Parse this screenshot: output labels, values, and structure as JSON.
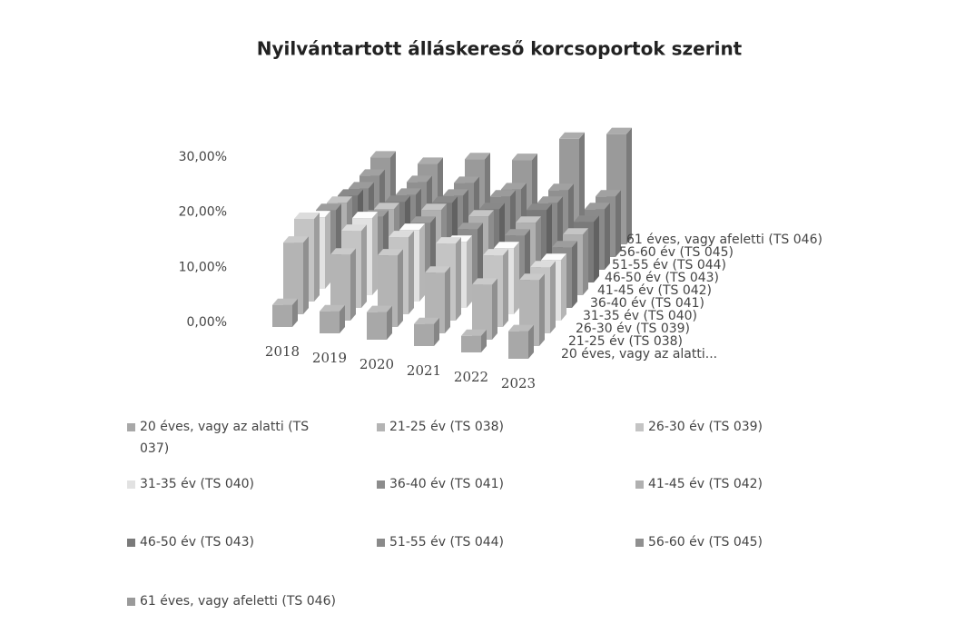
{
  "chart_data": {
    "type": "bar3d",
    "title": "Nyilvántartott álláskereső korcsoportok szerint",
    "categories": [
      "2018",
      "2019",
      "2020",
      "2021",
      "2022",
      "2023"
    ],
    "depth_labels": [
      "20 éves, vagy az alatti...",
      "21-25 év (TS 038)",
      "26-30 év (TS 039)",
      "31-35 év (TS 040)",
      "36-40 év (TS 041)",
      "41-45 év (TS 042)",
      "46-50 év (TS 043)",
      "51-55 év (TS 044)",
      "56-60 év (TS 045)",
      "61 éves, vagy afeletti (TS 046)"
    ],
    "ylim": [
      0,
      30
    ],
    "yticks": [
      {
        "value": 0,
        "label": "0,00%"
      },
      {
        "value": 10,
        "label": "10,00%"
      },
      {
        "value": 20,
        "label": "20,00%"
      },
      {
        "value": 30,
        "label": "30,00%"
      }
    ],
    "series": [
      {
        "name": "20 éves, vagy az alatti (TS 037)",
        "color": "#a8a8a8",
        "values": [
          4,
          4,
          5,
          4,
          3,
          5
        ]
      },
      {
        "name": "21-25 év (TS 038)",
        "color": "#b4b4b4",
        "values": [
          13,
          12,
          13,
          11,
          10,
          12
        ]
      },
      {
        "name": "26-30 év (TS 039)",
        "color": "#c4c4c4",
        "values": [
          15,
          14,
          14,
          14,
          13,
          12
        ]
      },
      {
        "name": "31-35 év (TS 040)",
        "color": "#e2e2e2",
        "values": [
          13,
          14,
          13,
          12,
          12,
          11
        ]
      },
      {
        "name": "36-40 év (TS 041)",
        "color": "#8c8c8c",
        "values": [
          12,
          12,
          12,
          12,
          12,
          11
        ]
      },
      {
        "name": "41-45 év (TS 042)",
        "color": "#b0b0b0",
        "values": [
          11,
          11,
          12,
          12,
          12,
          11
        ]
      },
      {
        "name": "46-50 év (TS 043)",
        "color": "#7a7a7a",
        "values": [
          10,
          10,
          11,
          11,
          12,
          11
        ]
      },
      {
        "name": "51-55 év (TS 044)",
        "color": "#8a8a8a",
        "values": [
          9,
          9,
          10,
          11,
          11,
          11
        ]
      },
      {
        "name": "56-60 év (TS 045)",
        "color": "#909090",
        "values": [
          9,
          9,
          10,
          10,
          11,
          11
        ]
      },
      {
        "name": "61 éves, vagy afeletti (TS 046)",
        "color": "#9a9a9a",
        "values": [
          10,
          10,
          12,
          13,
          18,
          20
        ]
      }
    ]
  }
}
